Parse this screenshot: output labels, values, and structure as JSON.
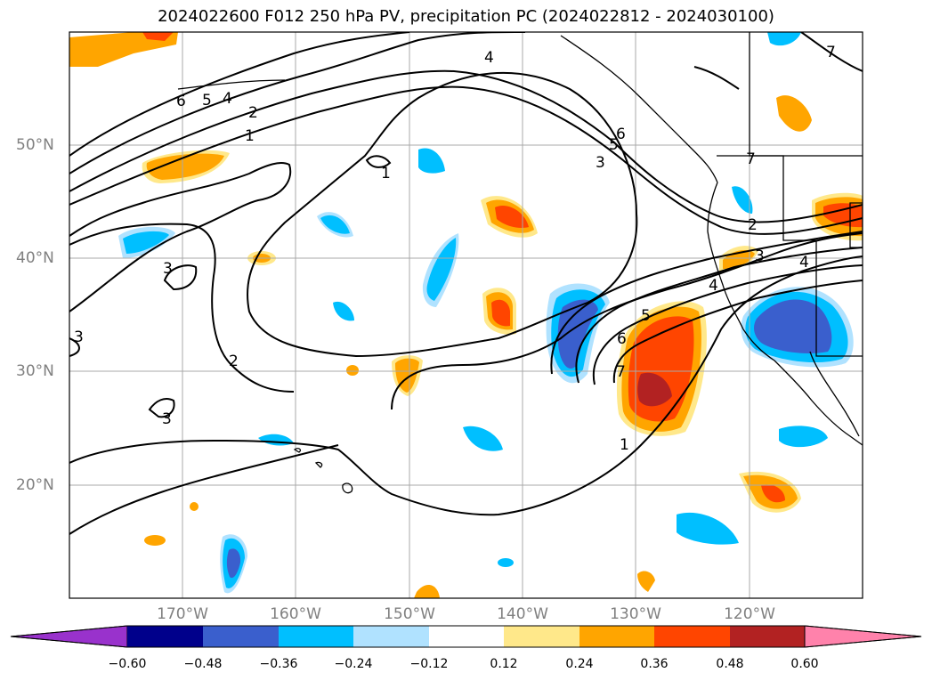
{
  "title": "2024022600 F012 250 hPa PV, precipitation PC (2024022812 - 2024030100)",
  "lat_labels": [
    "50°N",
    "40°N",
    "30°N",
    "20°N"
  ],
  "lon_labels": [
    "170°W",
    "160°W",
    "150°W",
    "140°W",
    "130°W",
    "120°W"
  ],
  "colorbar": {
    "ticks": [
      "−0.60",
      "−0.48",
      "−0.36",
      "−0.24",
      "−0.12",
      "0.12",
      "0.24",
      "0.36",
      "0.48",
      "0.60"
    ],
    "colors": [
      "#9932cc",
      "#00008b",
      "#3a5fcd",
      "#00bfff",
      "#b0e2ff",
      "#ffffff",
      "#ffe88a",
      "#ffa500",
      "#ff4500",
      "#b22222",
      "#ff82ab"
    ]
  },
  "contour_labels": [
    "6",
    "5",
    "4",
    "2",
    "1",
    "4",
    "6",
    "5",
    "3",
    "7",
    "2",
    "3",
    "4",
    "1",
    "3",
    "3",
    "2",
    "3",
    "5",
    "6",
    "7",
    "4",
    "1",
    "7"
  ],
  "map_frame": {
    "lon_range": [
      -180,
      -110
    ],
    "lat_range": [
      10,
      60
    ]
  }
}
